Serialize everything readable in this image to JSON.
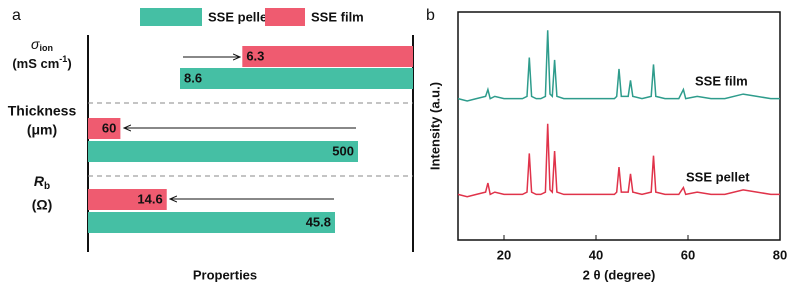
{
  "chart_data": [
    {
      "type": "hbar-groups",
      "panel": "a",
      "xlabel": "Properties",
      "categories": [
        [
          "σ",
          "ion",
          "(mS cm",
          "-1",
          ")"
        ],
        [
          "Thickness",
          "(μm)"
        ],
        [
          "R",
          "b",
          "(Ω)"
        ]
      ],
      "series": [
        {
          "name": "SSE pellet",
          "color": "#45bfa4",
          "values": [
            8.6,
            500,
            45.8
          ]
        },
        {
          "name": "SSE film",
          "color": "#ef5b70",
          "values": [
            6.3,
            60,
            14.6
          ]
        }
      ]
    },
    {
      "type": "line",
      "panel": "b",
      "xlabel": "2 θ (degree)",
      "ylabel": "Intensity (a.u.)",
      "xlim": [
        10,
        80
      ],
      "ylim": [
        0,
        100
      ],
      "xticks": [
        20,
        40,
        60,
        80
      ],
      "x": [
        10,
        12,
        14,
        16,
        16.5,
        17,
        18,
        20,
        22,
        24,
        25,
        25.5,
        26,
        27,
        28,
        29,
        29.5,
        30,
        30.5,
        31,
        31.5,
        33,
        35,
        38,
        40,
        42,
        44,
        44.5,
        45,
        45.5,
        47,
        47.5,
        48,
        50,
        52,
        52.5,
        53,
        55,
        58,
        59,
        59.5,
        62,
        65,
        68,
        72,
        75,
        78,
        80
      ],
      "series": [
        {
          "name": "SSE film",
          "color": "#2e9c8c",
          "values": [
            62,
            61,
            62,
            63,
            66,
            62,
            63,
            62,
            62,
            62,
            63,
            80,
            63,
            62,
            62,
            63,
            92,
            64,
            63,
            79,
            63,
            62,
            62,
            62,
            62,
            62,
            62,
            63,
            75,
            63,
            63,
            70,
            63,
            62,
            63,
            77,
            63,
            62,
            62,
            66,
            62,
            63,
            62,
            62,
            64,
            63,
            62,
            62
          ]
        },
        {
          "name": "SSE pellet",
          "color": "#e0334a",
          "values": [
            20,
            19,
            20,
            21,
            25,
            20,
            21,
            20,
            20,
            20,
            21,
            38,
            21,
            20,
            20,
            21,
            51,
            22,
            21,
            39,
            21,
            20,
            20,
            20,
            20,
            20,
            20,
            21,
            32,
            21,
            21,
            29,
            21,
            20,
            21,
            37,
            21,
            20,
            20,
            23,
            20,
            21,
            20,
            20,
            22,
            21,
            20,
            20
          ]
        }
      ]
    }
  ]
}
